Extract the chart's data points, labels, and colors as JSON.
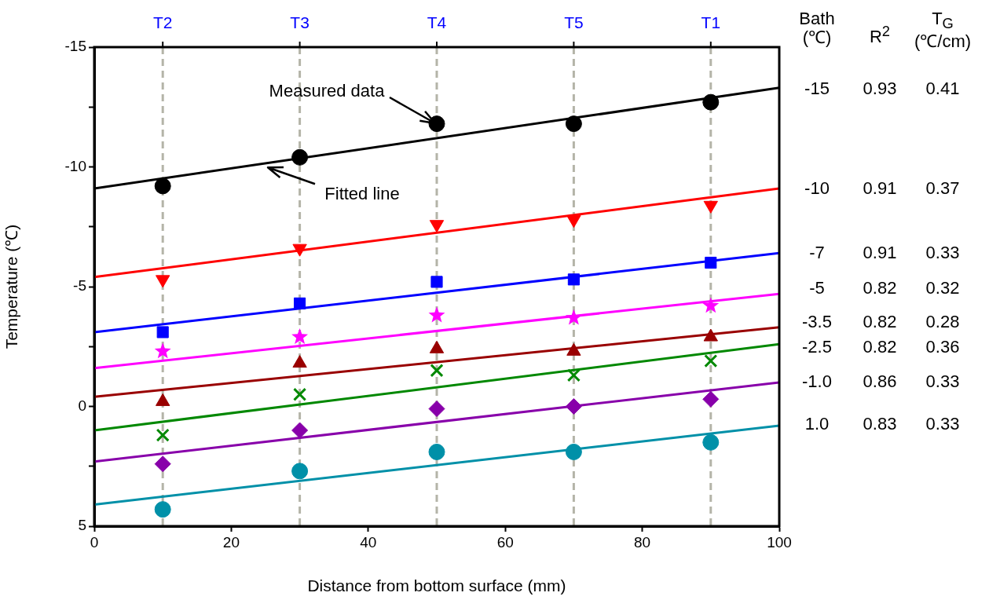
{
  "chart_data": {
    "type": "scatter",
    "xlabel": "Distance from bottom surface (mm)",
    "ylabel": "Temperature (℃)",
    "xlim": [
      0,
      100
    ],
    "xticks": [
      0,
      20,
      40,
      60,
      80,
      100
    ],
    "ylim": [
      5,
      -15
    ],
    "yticks": [
      -15,
      {
        "value": -12.5,
        "label": null
      },
      -10,
      {
        "value": -7.5,
        "label": null
      },
      -5,
      {
        "value": -2.5,
        "label": null
      },
      0,
      {
        "value": 2.5,
        "label": null
      },
      5
    ],
    "grid": false,
    "legend": false,
    "ref_lines": [
      {
        "axis": "x",
        "value": 10,
        "label": "T2",
        "color": "#b4b4a8",
        "line_style": "dashed"
      },
      {
        "axis": "x",
        "value": 30,
        "label": "T3",
        "color": "#b4b4a8",
        "line_style": "dashed"
      },
      {
        "axis": "x",
        "value": 50,
        "label": "T4",
        "color": "#b4b4a8",
        "line_style": "dashed"
      },
      {
        "axis": "x",
        "value": 70,
        "label": "T5",
        "color": "#b4b4a8",
        "line_style": "dashed"
      },
      {
        "axis": "x",
        "value": 90,
        "label": "T1",
        "color": "#b4b4a8",
        "line_style": "dashed"
      }
    ],
    "series": [
      {
        "marker": "circle",
        "color": "#000000",
        "x": [
          10,
          30,
          50,
          70,
          90
        ],
        "values": [
          -9.2,
          -10.4,
          -11.8,
          -11.8,
          -12.7
        ]
      },
      {
        "marker": "triangle-down",
        "color": "#ff0000",
        "x": [
          10,
          30,
          50,
          70,
          90
        ],
        "values": [
          -5.3,
          -6.6,
          -7.6,
          -7.8,
          -8.4
        ]
      },
      {
        "marker": "square",
        "color": "#0000ff",
        "x": [
          10,
          30,
          50,
          70,
          90
        ],
        "values": [
          -3.1,
          -4.3,
          -5.2,
          -5.3,
          -6.0
        ]
      },
      {
        "marker": "star",
        "color": "#ff00ff",
        "x": [
          10,
          30,
          50,
          70,
          90
        ],
        "values": [
          -2.3,
          -2.9,
          -3.8,
          -3.7,
          -4.2
        ]
      },
      {
        "marker": "triangle",
        "color": "#990000",
        "x": [
          10,
          30,
          50,
          70,
          90
        ],
        "values": [
          -0.2,
          -1.8,
          -2.4,
          -2.3,
          -2.9
        ]
      },
      {
        "marker": "cross",
        "color": "#008800",
        "x": [
          10,
          30,
          50,
          70,
          90
        ],
        "values": [
          1.2,
          -0.5,
          -1.5,
          -1.3,
          -1.9
        ]
      },
      {
        "marker": "diamond",
        "color": "#8800aa",
        "x": [
          10,
          30,
          50,
          70,
          90
        ],
        "values": [
          2.4,
          1.0,
          0.1,
          0.0,
          -0.3
        ]
      },
      {
        "marker": "circle",
        "color": "#0090a8",
        "x": [
          10,
          30,
          50,
          70,
          90
        ],
        "values": [
          4.3,
          2.7,
          1.9,
          1.9,
          1.5
        ]
      },
      {
        "type": "line",
        "marker": "none",
        "color": "#000000",
        "x": [
          0,
          100
        ],
        "values": [
          -9.1,
          -13.3
        ]
      },
      {
        "type": "line",
        "marker": "none",
        "color": "#ff0000",
        "x": [
          0,
          100
        ],
        "values": [
          -5.4,
          -9.1
        ]
      },
      {
        "type": "line",
        "marker": "none",
        "color": "#0000ff",
        "x": [
          0,
          100
        ],
        "values": [
          -3.1,
          -6.4
        ]
      },
      {
        "type": "line",
        "marker": "none",
        "color": "#ff00ff",
        "x": [
          0,
          100
        ],
        "values": [
          -1.6,
          -4.7
        ]
      },
      {
        "type": "line",
        "marker": "none",
        "color": "#990000",
        "x": [
          0,
          100
        ],
        "values": [
          -0.4,
          -3.3
        ]
      },
      {
        "type": "line",
        "marker": "none",
        "color": "#008800",
        "x": [
          0,
          100
        ],
        "values": [
          1.0,
          -2.6
        ]
      },
      {
        "type": "line",
        "marker": "none",
        "color": "#8800aa",
        "x": [
          0,
          100
        ],
        "values": [
          2.3,
          -1.0
        ]
      },
      {
        "type": "line",
        "marker": "none",
        "color": "#0090a8",
        "x": [
          0,
          100
        ],
        "values": [
          4.1,
          0.8
        ]
      }
    ],
    "annotations": [
      {
        "text": "Measured data",
        "x": 50,
        "y": -11.8
      },
      {
        "text": "Fitted line",
        "x": 25,
        "y": -10.0
      },
      "Bath (℃)",
      "R$^{2}$",
      "T$_{G}$ (℃/cm)",
      "-15",
      "0.93",
      "0.41",
      "-10",
      "0.91",
      "0.37",
      "-7",
      "0.91",
      "0.33",
      "-5",
      "0.82",
      "0.32",
      "-3.5",
      "0.82",
      "0.28",
      "-2.5",
      "0.82",
      "0.36",
      "-1.0",
      "0.86",
      "0.33",
      "1.0",
      "0.83",
      "0.33"
    ]
  }
}
